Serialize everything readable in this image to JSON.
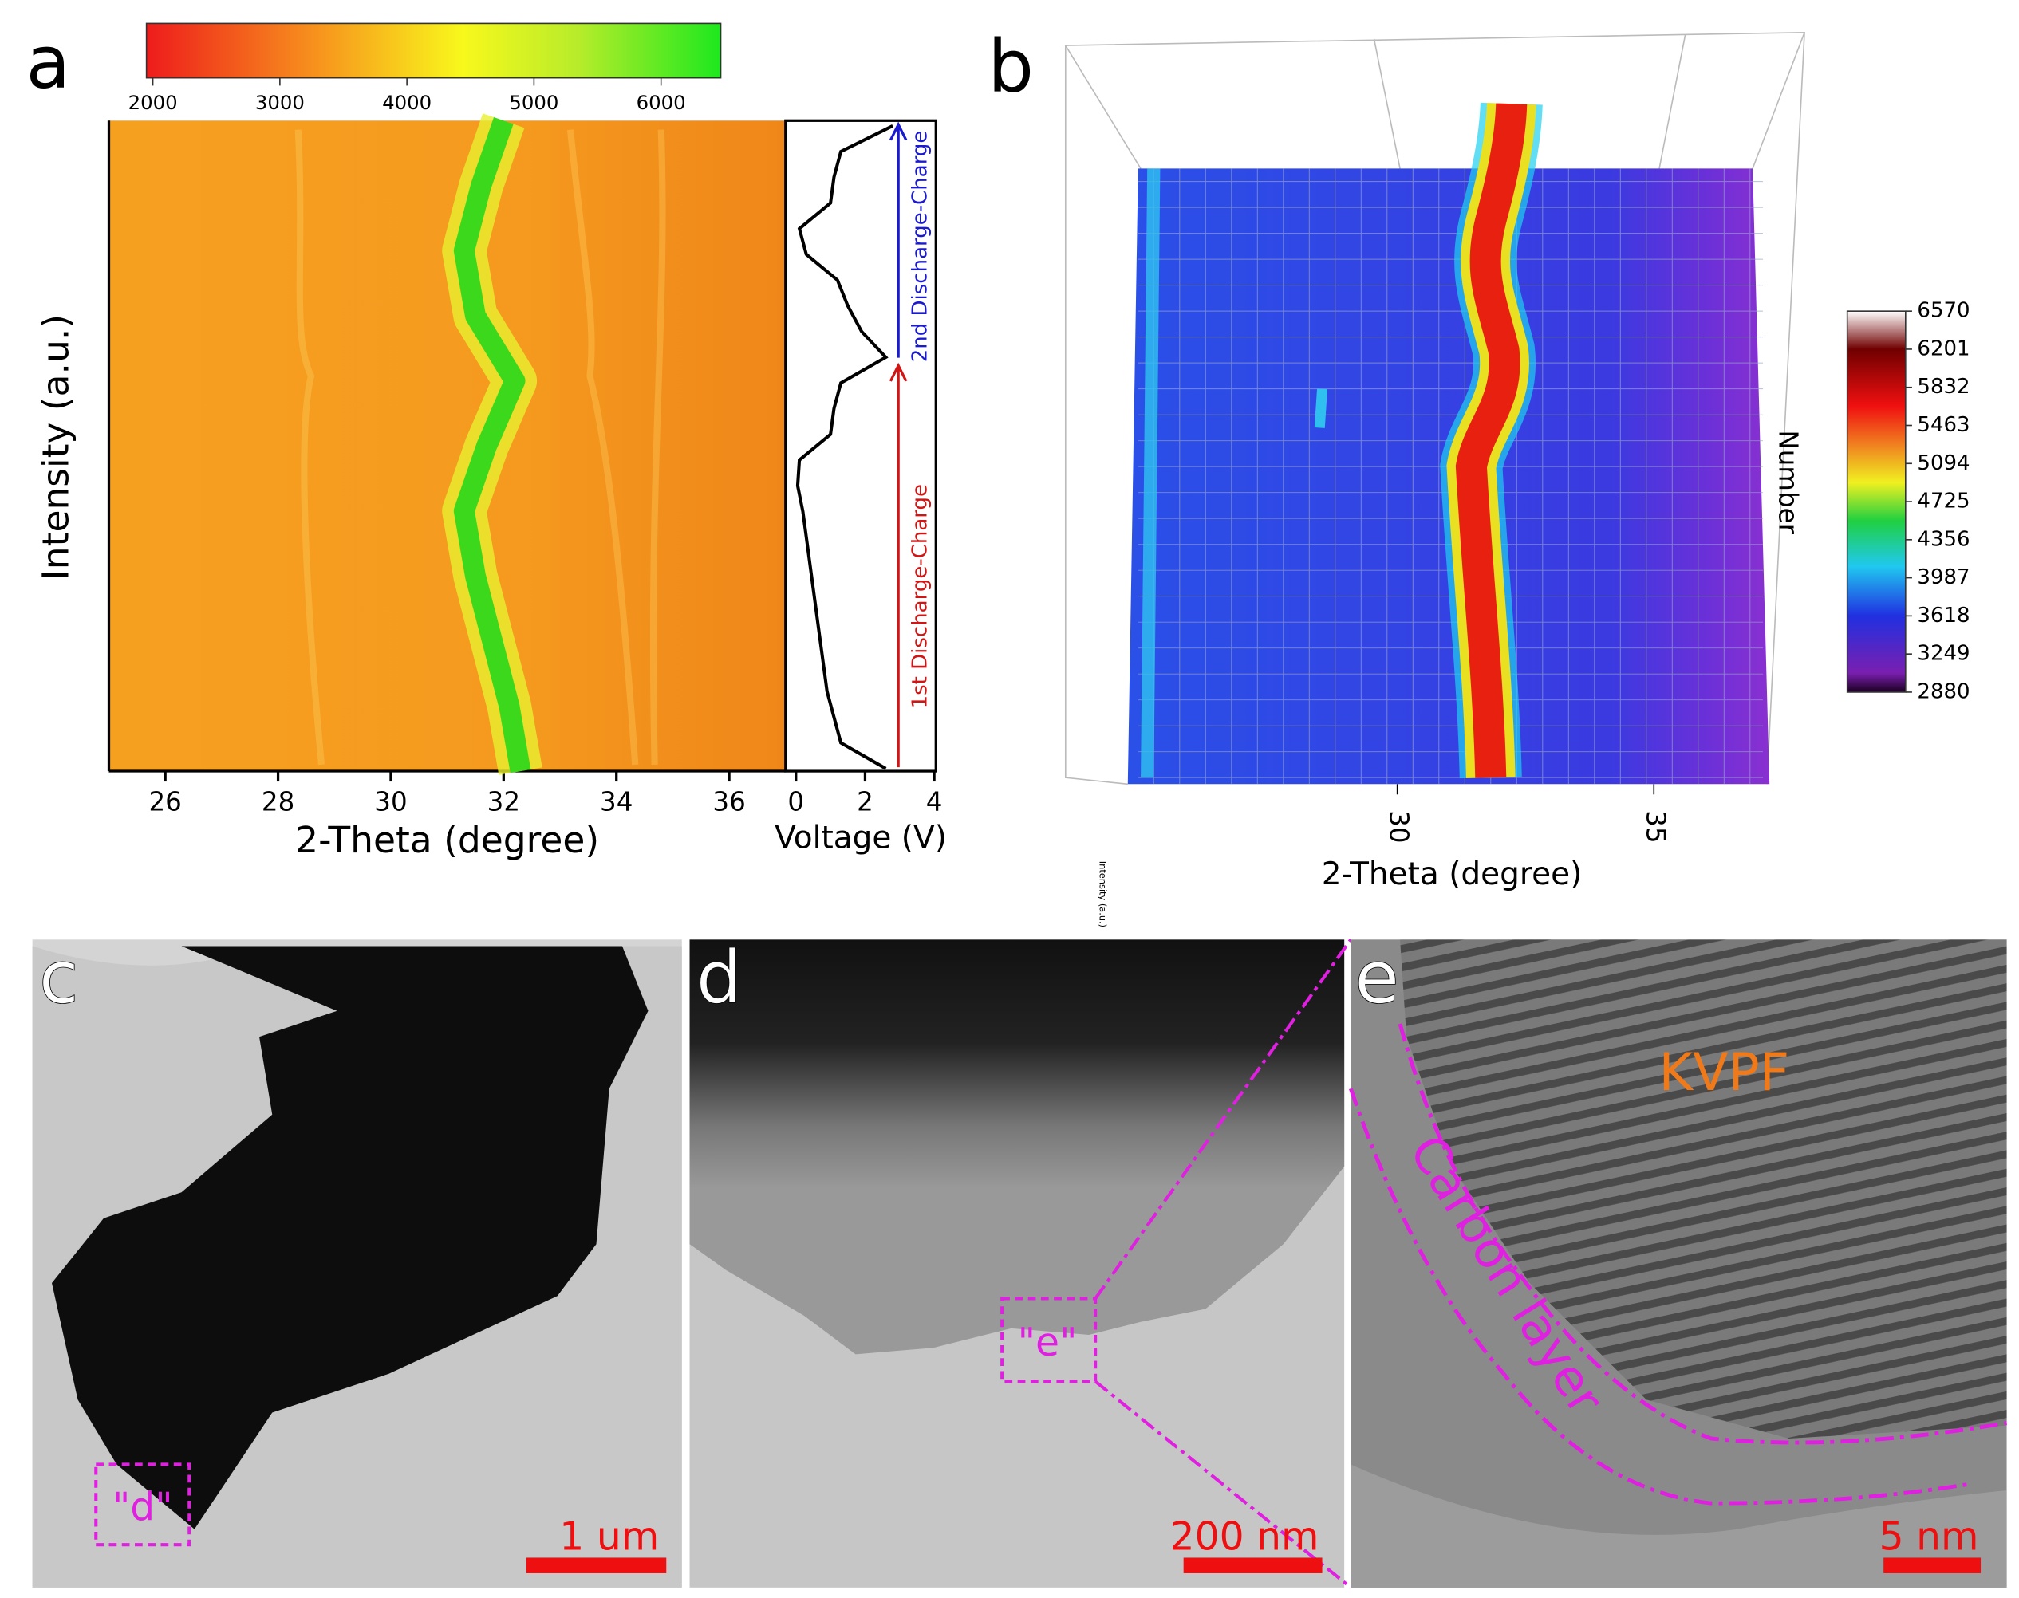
{
  "chart_data": [
    {
      "type": "heatmap",
      "label": "a",
      "xlabel": "2-Theta (degree)",
      "ylabel": "Intensity (a.u.)",
      "xlim": [
        25,
        37
      ],
      "xticks": [
        26,
        28,
        30,
        32,
        34,
        36
      ],
      "ridge": [
        32.0,
        31.6,
        31.3,
        31.5,
        32.2,
        31.7,
        31.3,
        31.5,
        31.8,
        32.1,
        32.3
      ],
      "ridge_color": "#3cd81c",
      "colorbar": {
        "lim": [
          1950,
          6470
        ],
        "ticks": [
          2000,
          3000,
          4000,
          5000,
          6000
        ]
      }
    },
    {
      "type": "line",
      "xlabel": "Voltage (V)",
      "xlim": [
        -0.3,
        4.05
      ],
      "xticks": [
        0,
        2,
        4
      ],
      "values": [
        2.8,
        1.3,
        1.1,
        1.0,
        0.1,
        0.3,
        1.2,
        1.5,
        1.9,
        2.6,
        1.3,
        1.1,
        1.0,
        0.1,
        0.05,
        0.2,
        0.3,
        0.4,
        0.5,
        0.6,
        0.7,
        0.8,
        0.9,
        1.1,
        1.3,
        2.6
      ],
      "color": "#000000",
      "annotations": [
        {
          "text": "1st Discharge-Charge",
          "color": "#d01515"
        },
        {
          "text": "2nd Discharge-Charge",
          "color": "#1a1ad0"
        }
      ]
    },
    {
      "type": "surface",
      "label": "b",
      "xlabel": "2-Theta (degree)",
      "ylabel": "Number",
      "zlabel": "Intensity (a.u.)",
      "xlim": [
        25,
        37
      ],
      "xticks": [
        30,
        35
      ],
      "colorbar": {
        "lim": [
          2880,
          6570
        ],
        "ticks": [
          2880,
          3249,
          3618,
          3987,
          4356,
          4725,
          5094,
          5463,
          5832,
          6201,
          6570
        ]
      }
    }
  ],
  "images": [
    {
      "label": "c",
      "box_label": "\"d\"",
      "scale_bar": "1 um"
    },
    {
      "label": "d",
      "box_label": "\"e\"",
      "scale_bar": "200 nm"
    },
    {
      "label": "e",
      "annotations": [
        "KVPF",
        "Carbon layer"
      ],
      "scale_bar": "5 nm"
    }
  ]
}
